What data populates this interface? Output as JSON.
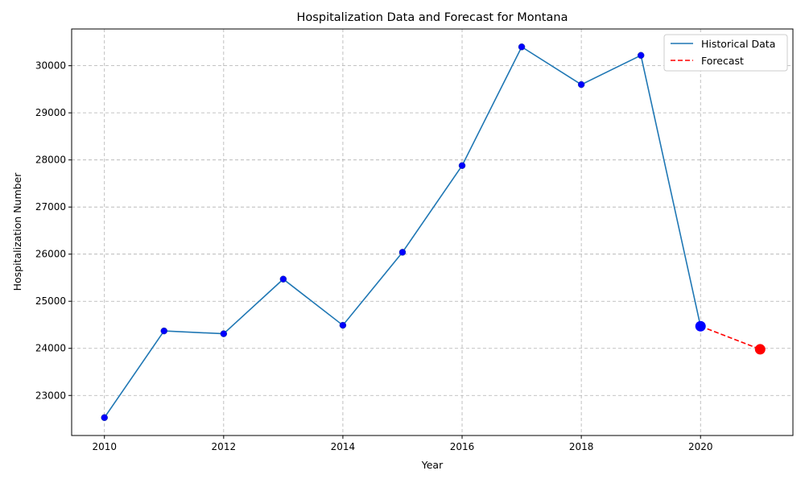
{
  "chart_data": {
    "type": "line",
    "title": "Hospitalization Data and Forecast for Montana",
    "xlabel": "Year",
    "ylabel": "Hospitalization Number",
    "xlim": [
      2009.45,
      2021.55
    ],
    "ylim": [
      22150,
      30780
    ],
    "x_ticks": [
      2010,
      2012,
      2014,
      2016,
      2018,
      2020
    ],
    "y_ticks": [
      23000,
      24000,
      25000,
      26000,
      27000,
      28000,
      29000,
      30000
    ],
    "grid": true,
    "legend_position": "top-right",
    "series": [
      {
        "name": "Historical Data",
        "style": "solid",
        "color": "#1f77b4",
        "marker_color": "#0000ff",
        "x": [
          2010,
          2011,
          2012,
          2013,
          2014,
          2015,
          2016,
          2017,
          2018,
          2019,
          2020
        ],
        "y": [
          22530,
          24370,
          24310,
          25470,
          24490,
          26040,
          27880,
          30400,
          29600,
          30220,
          24470
        ]
      },
      {
        "name": "Forecast",
        "style": "dashed",
        "color": "#ff0000",
        "marker_color": "#ff0000",
        "x": [
          2020,
          2021
        ],
        "y": [
          24470,
          23980
        ]
      }
    ],
    "highlight_points": [
      {
        "x": 2020,
        "y": 24470,
        "color": "#0000ff"
      },
      {
        "x": 2021,
        "y": 23980,
        "color": "#ff0000"
      }
    ]
  }
}
